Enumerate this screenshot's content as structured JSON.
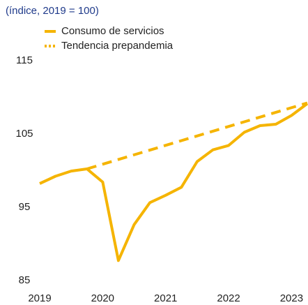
{
  "chart_data": {
    "type": "line",
    "title": "(índice, 2019 = 100)",
    "series": [
      {
        "name": "Consumo de servicios",
        "color": "#f5b400",
        "dashed": false,
        "x": [
          2019,
          2019.25,
          2019.5,
          2019.75,
          2020,
          2020.25,
          2020.5,
          2020.75,
          2021,
          2021.25,
          2021.5,
          2021.75,
          2022,
          2022.25,
          2022.5,
          2022.75,
          2023,
          2023.25
        ],
        "values": [
          99.0,
          100.0,
          100.7,
          101.0,
          99.2,
          88.5,
          93.4,
          96.4,
          97.4,
          98.5,
          102.0,
          103.6,
          104.2,
          106.0,
          106.9,
          107.1,
          108.3,
          109.9
        ]
      },
      {
        "name": "Tendencia prepandemia",
        "color": "#f5b400",
        "dashed": true,
        "x": [
          2019.75,
          2023.25
        ],
        "values": [
          101.0,
          110.0
        ]
      }
    ],
    "xlim": [
      2019,
      2023.25
    ],
    "xticks": [
      2019,
      2020,
      2021,
      2022,
      2023
    ],
    "ylim": [
      85,
      115
    ],
    "yticks": [
      85,
      95,
      105,
      115
    ],
    "grid": false
  }
}
